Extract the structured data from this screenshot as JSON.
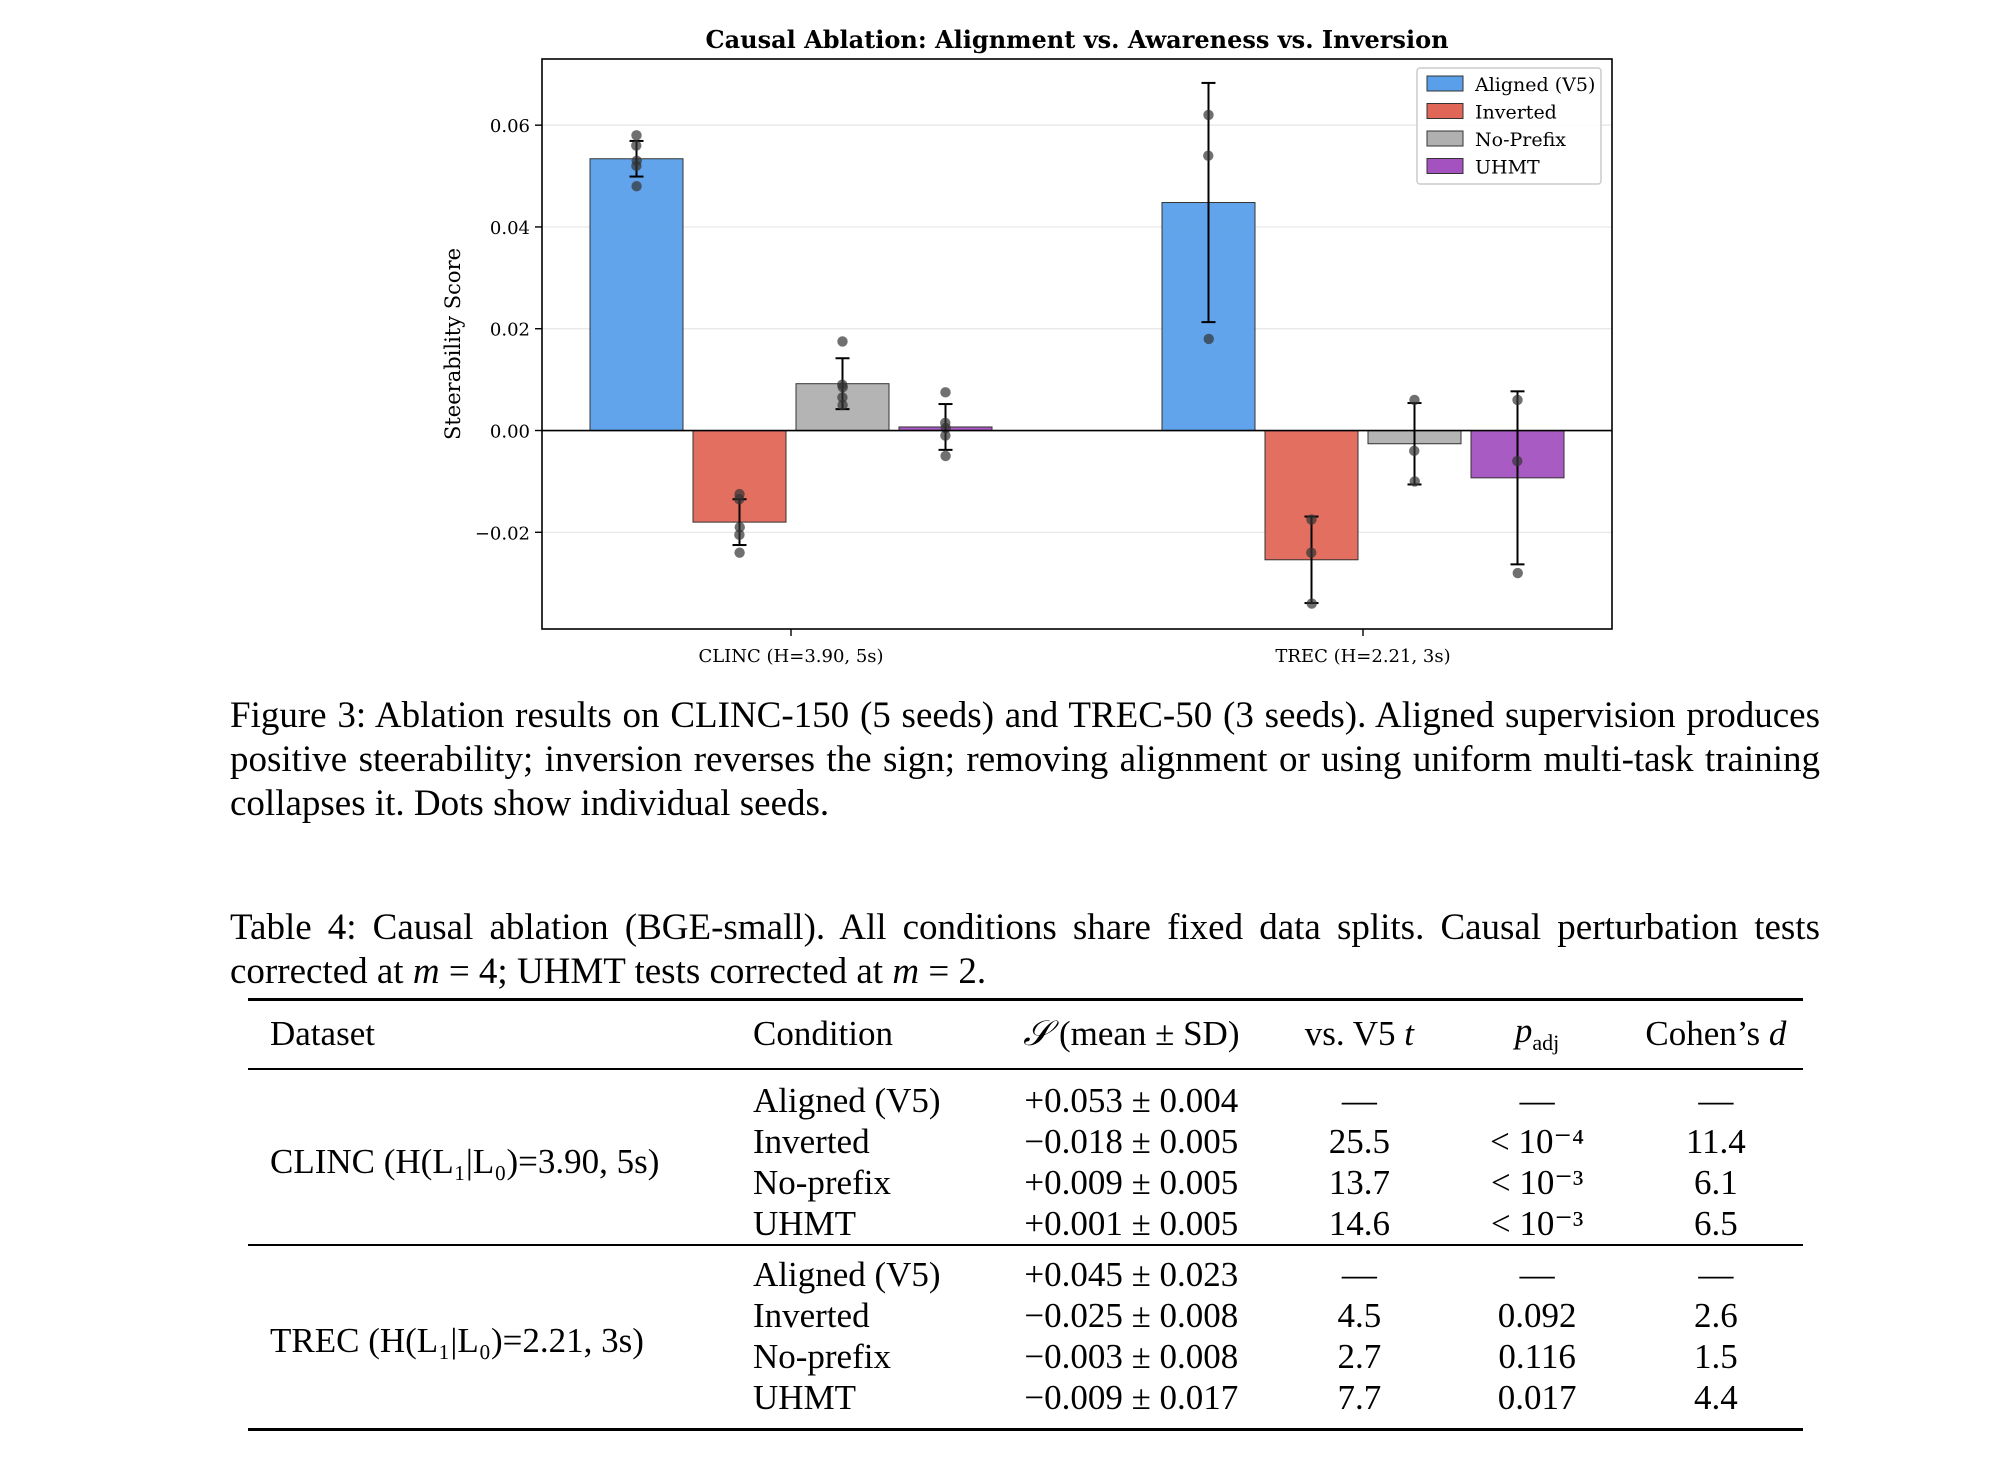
{
  "chart_data": {
    "type": "bar",
    "title": "Causal Ablation: Alignment vs. Awareness vs. Inversion",
    "xlabel": "",
    "ylabel": "Steerability Score",
    "ylim": [
      -0.039,
      0.073
    ],
    "yticks": [
      -0.02,
      0.0,
      0.02,
      0.04,
      0.06
    ],
    "ytick_labels": [
      "−0.02",
      "0.00",
      "0.02",
      "0.04",
      "0.06"
    ],
    "grid": true,
    "legend_position": "top-right",
    "categories": [
      "CLINC (H=3.90, 5s)",
      "TREC (H=2.21, 3s)"
    ],
    "series": [
      {
        "name": "Aligned (V5)",
        "color": "#5a9fea",
        "values": [
          0.0534,
          0.0448
        ],
        "errors": [
          0.0035,
          0.0235
        ],
        "seeds": [
          [
            0.058,
            0.056,
            0.053,
            0.052,
            0.048
          ],
          [
            0.062,
            0.054,
            0.018
          ]
        ]
      },
      {
        "name": "Inverted",
        "color": "#e06757",
        "values": [
          -0.018,
          -0.0254
        ],
        "errors": [
          0.0045,
          0.0085
        ],
        "seeds": [
          [
            -0.0125,
            -0.0135,
            -0.019,
            -0.0205,
            -0.024
          ],
          [
            -0.0175,
            -0.024,
            -0.034
          ]
        ]
      },
      {
        "name": "No-Prefix",
        "color": "#b0b0b0",
        "values": [
          0.0092,
          -0.0026
        ],
        "errors": [
          0.005,
          0.008
        ],
        "seeds": [
          [
            0.0175,
            0.009,
            0.0085,
            0.0065,
            0.005
          ],
          [
            0.006,
            -0.004,
            -0.01
          ]
        ]
      },
      {
        "name": "UHMT",
        "color": "#a352bf",
        "values": [
          0.0007,
          -0.0093
        ],
        "errors": [
          0.0045,
          0.017
        ],
        "seeds": [
          [
            0.0075,
            0.0015,
            0.0005,
            -0.001,
            -0.005
          ],
          [
            0.006,
            -0.006,
            -0.028
          ]
        ]
      }
    ]
  },
  "figure_caption": "Figure 3: Ablation results on CLINC-150 (5 seeds) and TREC-50 (3 seeds). Aligned supervision produces positive steerability; inversion reverses the sign; removing alignment or using uniform multi-task training collapses it. Dots show individual seeds.",
  "table_caption_part1": "Table 4: Causal ablation (BGE-small). All conditions share fixed data splits. Causal perturbation tests corrected at ",
  "table_caption_m": "m",
  "table_caption_eq1": " = 4; UHMT tests corrected at ",
  "table_caption_eq2": " = 2.",
  "table": {
    "headers": {
      "dataset": "Dataset",
      "condition": "Condition",
      "score_symbol": "𝒮",
      "score_rest": " (mean ± SD)",
      "vs_v5": "vs. V5 ",
      "t_symbol": "t",
      "p_symbol": "p",
      "p_sub": "adj",
      "cohen": "Cohen’s ",
      "d_symbol": "d"
    },
    "group1_label": "CLINC (H(L₁|L₀)=3.90, 5s)",
    "group2_label": "TREC (H(L₁|L₀)=2.21, 3s)",
    "clinc": [
      {
        "condition": "Aligned (V5)",
        "score": "+0.053 ± 0.004",
        "t": "—",
        "p": "—",
        "d": "—"
      },
      {
        "condition": "Inverted",
        "score": "−0.018 ± 0.005",
        "t": "25.5",
        "p": "< 10⁻⁴",
        "d": "11.4"
      },
      {
        "condition": "No-prefix",
        "score": "+0.009 ± 0.005",
        "t": "13.7",
        "p": "< 10⁻³",
        "d": "6.1"
      },
      {
        "condition": "UHMT",
        "score": "+0.001 ± 0.005",
        "t": "14.6",
        "p": "< 10⁻³",
        "d": "6.5"
      }
    ],
    "trec": [
      {
        "condition": "Aligned (V5)",
        "score": "+0.045 ± 0.023",
        "t": "—",
        "p": "—",
        "d": "—"
      },
      {
        "condition": "Inverted",
        "score": "−0.025 ± 0.008",
        "t": "4.5",
        "p": "0.092",
        "d": "2.6"
      },
      {
        "condition": "No-prefix",
        "score": "−0.003 ± 0.008",
        "t": "2.7",
        "p": "0.116",
        "d": "1.5"
      },
      {
        "condition": "UHMT",
        "score": "−0.009 ± 0.017",
        "t": "7.7",
        "p": "0.017",
        "d": "4.4"
      }
    ]
  }
}
